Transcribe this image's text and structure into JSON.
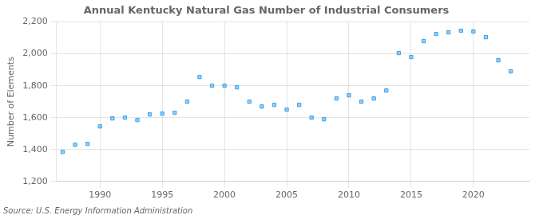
{
  "chart_data": {
    "type": "scatter",
    "title": "Annual Kentucky Natural Gas Number of Industrial Consumers",
    "ylabel": "Number of Elements",
    "annotations": [
      "Source: U.S. Energy Information Administration"
    ],
    "x": [
      1987,
      1988,
      1989,
      1990,
      1991,
      1992,
      1993,
      1994,
      1995,
      1996,
      1997,
      1998,
      1999,
      2000,
      2001,
      2002,
      2003,
      2004,
      2005,
      2006,
      2007,
      2008,
      2009,
      2010,
      2011,
      2012,
      2013,
      2014,
      2015,
      2016,
      2017,
      2018,
      2019,
      2020,
      2021,
      2022,
      2023
    ],
    "values": [
      1385,
      1430,
      1435,
      1545,
      1595,
      1600,
      1585,
      1620,
      1625,
      1630,
      1700,
      1855,
      1800,
      1800,
      1790,
      1700,
      1670,
      1680,
      1650,
      1680,
      1600,
      1590,
      1720,
      1740,
      1700,
      1720,
      1770,
      2005,
      1980,
      2080,
      2125,
      2135,
      2145,
      2140,
      2105,
      1960,
      1890
    ],
    "xlim": [
      1986.5,
      2024.5
    ],
    "xticks": [
      1990,
      1995,
      2000,
      2005,
      2010,
      2015,
      2020
    ],
    "ylim": [
      1200,
      2200
    ],
    "yticks": [
      {
        "value": 1200,
        "label": "1,200"
      },
      {
        "value": 1400,
        "label": "1,400"
      },
      {
        "value": 1600,
        "label": "1,600"
      },
      {
        "value": 1800,
        "label": "1,800"
      },
      {
        "value": 2000,
        "label": "2,000"
      },
      {
        "value": 2200,
        "label": "2,200"
      }
    ],
    "marker": "square",
    "grid": true
  }
}
